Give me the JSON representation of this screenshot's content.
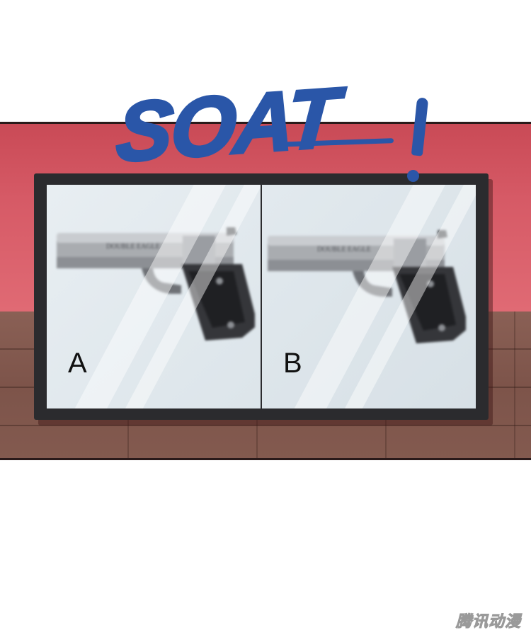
{
  "comic_panel": {
    "sound_effect": "SOAT",
    "screen": {
      "left_label": "A",
      "right_label": "B",
      "gun_text_left": "DOUBLE EAGLE",
      "gun_text_right": "DOUBLE EAGLE"
    },
    "watermark": "腾讯动漫"
  },
  "colors": {
    "sfx_blue": "#2a56a8",
    "wall_red": "#d65a66",
    "wood_brown": "#7d544a",
    "monitor_frame": "#2b2b2e"
  }
}
